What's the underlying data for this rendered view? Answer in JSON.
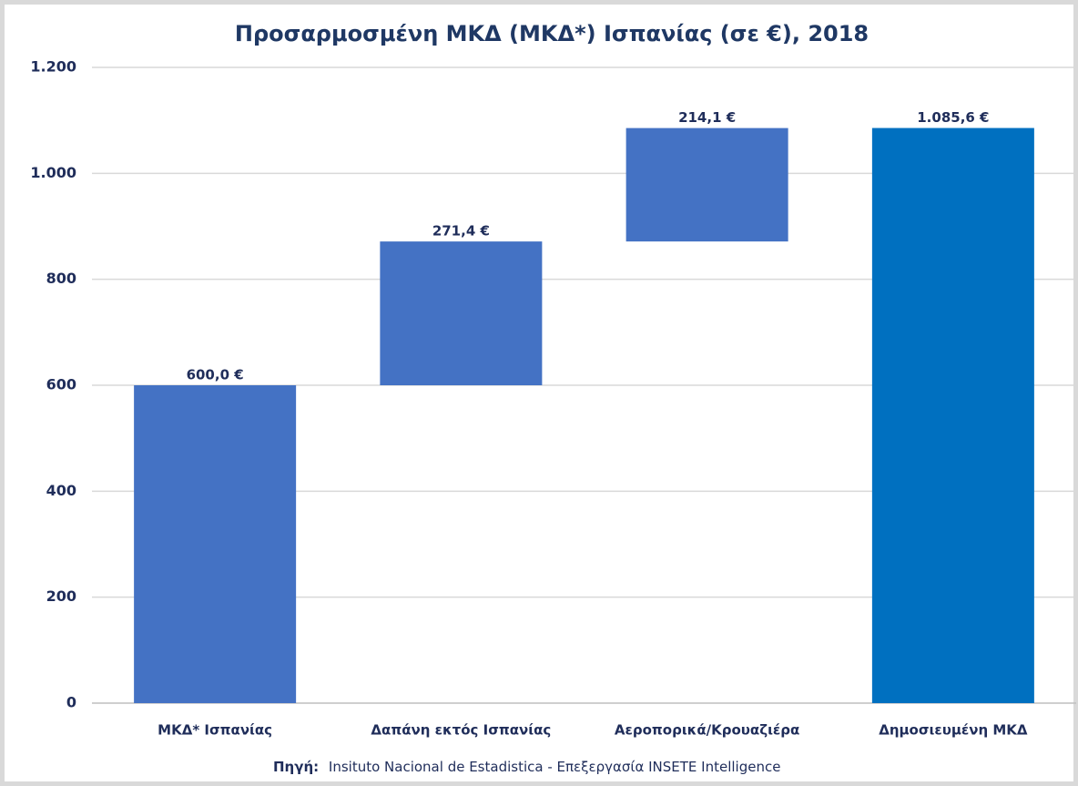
{
  "chart_data": {
    "type": "waterfall",
    "title": "Προσαρμοσμένη ΜΚΔ (ΜΚΔ*) Ισπανίας (σε €), 2018",
    "categories": [
      "ΜΚΔ* Ισπανίας",
      "Δαπάνη εκτός Ισπανίας",
      "Αεροπορικά/Κρουαζιέρα",
      "Δημοσιευμένη ΜΚΔ"
    ],
    "values": [
      600,
      271.4,
      214.1,
      1085.6
    ],
    "value_labels": [
      "600,0 €",
      "271,4 €",
      "214,1 €",
      "1.085,6 €"
    ],
    "is_total": [
      false,
      false,
      false,
      true
    ],
    "colors": [
      "#4472c4",
      "#4472c4",
      "#4472c4",
      "#0070c0"
    ],
    "ylim": [
      0,
      1200
    ],
    "yticks": [
      0,
      200,
      400,
      600,
      800,
      {
        "value": 1000,
        "label": "1.000"
      },
      {
        "value": 1200,
        "label": "1.200"
      }
    ],
    "grid": true,
    "source_label": "Πηγή:",
    "source": "Insituto Nacional de Estadistica - Επεξεργασία INSETE Intelligence"
  }
}
